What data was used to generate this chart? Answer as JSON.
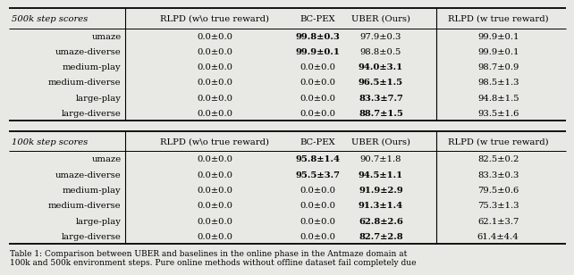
{
  "caption": "Table 1: Comparison between UBER and baselines in the online phase in the Antmaze domain at\n100k and 500k environment steps. Pure online methods without offline dataset fail completely due",
  "header_500k": [
    "500k step scores",
    "RLPD (w\\o true reward)",
    "BC-PEX",
    "UBER (Ours)",
    "RLPD (w true reward)"
  ],
  "header_100k": [
    "100k step scores",
    "RLPD (w\\o true reward)",
    "BC-PEX",
    "UBER (Ours)",
    "RLPD (w true reward)"
  ],
  "rows_500k": [
    [
      "umaze",
      "0.0±0.0",
      "99.8±0.3",
      "97.9±0.3",
      "99.9±0.1"
    ],
    [
      "umaze-diverse",
      "0.0±0.0",
      "99.9±0.1",
      "98.8±0.5",
      "99.9±0.1"
    ],
    [
      "medium-play",
      "0.0±0.0",
      "0.0±0.0",
      "94.0±3.1",
      "98.7±0.9"
    ],
    [
      "medium-diverse",
      "0.0±0.0",
      "0.0±0.0",
      "96.5±1.5",
      "98.5±1.3"
    ],
    [
      "large-play",
      "0.0±0.0",
      "0.0±0.0",
      "83.3±7.7",
      "94.8±1.5"
    ],
    [
      "large-diverse",
      "0.0±0.0",
      "0.0±0.0",
      "88.7±1.5",
      "93.5±1.6"
    ]
  ],
  "rows_100k": [
    [
      "umaze",
      "0.0±0.0",
      "95.8±1.4",
      "90.7±1.8",
      "82.5±0.2"
    ],
    [
      "umaze-diverse",
      "0.0±0.0",
      "95.5±3.7",
      "94.5±1.1",
      "83.3±0.3"
    ],
    [
      "medium-play",
      "0.0±0.0",
      "0.0±0.0",
      "91.9±2.9",
      "79.5±0.6"
    ],
    [
      "medium-diverse",
      "0.0±0.0",
      "0.0±0.0",
      "91.3±1.4",
      "75.3±1.3"
    ],
    [
      "large-play",
      "0.0±0.0",
      "0.0±0.0",
      "62.8±2.6",
      "62.1±3.7"
    ],
    [
      "large-diverse",
      "0.0±0.0",
      "0.0±0.0",
      "82.7±2.8",
      "61.4±4.4"
    ]
  ],
  "bold_500k": [
    [
      false,
      false,
      true,
      false,
      false
    ],
    [
      false,
      false,
      true,
      false,
      false
    ],
    [
      false,
      false,
      false,
      true,
      false
    ],
    [
      false,
      false,
      false,
      true,
      false
    ],
    [
      false,
      false,
      false,
      true,
      false
    ],
    [
      false,
      false,
      false,
      true,
      false
    ]
  ],
  "bold_100k": [
    [
      false,
      false,
      true,
      false,
      false
    ],
    [
      false,
      false,
      true,
      true,
      false
    ],
    [
      false,
      false,
      false,
      true,
      false
    ],
    [
      false,
      false,
      false,
      true,
      false
    ],
    [
      false,
      false,
      false,
      true,
      false
    ],
    [
      false,
      false,
      false,
      true,
      false
    ]
  ],
  "bg_color": "#e8e8e4",
  "figsize": [
    6.4,
    3.07
  ],
  "dpi": 100
}
